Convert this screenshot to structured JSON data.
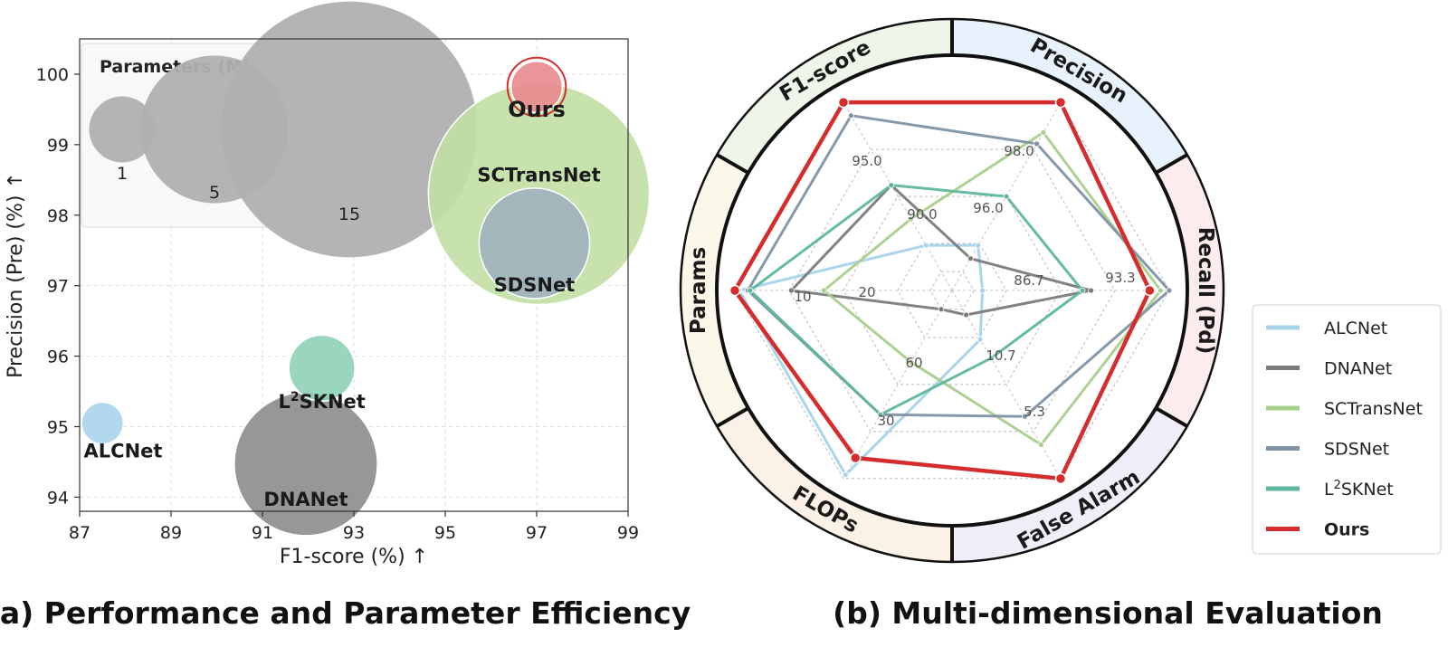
{
  "captions": {
    "a": "(a) Performance and Parameter Efficiency",
    "b": "(b) Multi-dimensional Evaluation"
  },
  "chart_data": [
    {
      "type": "scatter",
      "xlabel": "F1-score (%) ↑",
      "ylabel": "Precision (Pre) (%) ↑",
      "xlim": [
        87,
        99
      ],
      "ylim": [
        93.8,
        100.5
      ],
      "xticks": [
        "87",
        "89",
        "91",
        "93",
        "95",
        "97",
        "99"
      ],
      "yticks": [
        "94",
        "95",
        "96",
        "97",
        "98",
        "99",
        "100"
      ],
      "grid": true,
      "size_legend": {
        "title": "Parameters (M)",
        "values": [
          1,
          5,
          15
        ],
        "labels": [
          "1",
          "5",
          "15"
        ]
      },
      "points": [
        {
          "name": "ALCNet",
          "label": "ALCNet",
          "x": 87.5,
          "y": 95.05,
          "params": 0.4,
          "color": "#a8d4ea"
        },
        {
          "name": "DNANet",
          "label": "DNANet",
          "x": 91.95,
          "y": 94.47,
          "params": 4.7,
          "color": "#8c8c8c"
        },
        {
          "name": "L2SKNet",
          "label": "SKNet",
          "x": 92.3,
          "y": 95.83,
          "params": 1.0,
          "color": "#8fd1b7"
        },
        {
          "name": "SCTransNet",
          "label": "SCTransNet",
          "x": 97.05,
          "y": 98.3,
          "params": 11.2,
          "color": "#c2dfa4"
        },
        {
          "name": "SDSNet",
          "label": "SDSNet",
          "x": 96.95,
          "y": 97.6,
          "params": 2.8,
          "color": "#9fb1be"
        },
        {
          "name": "Ours",
          "label": "Ours",
          "x": 97.0,
          "y": 99.82,
          "params": 0.6,
          "color": "#e8898d"
        }
      ]
    },
    {
      "type": "radar",
      "axes": [
        "Precision",
        "Recall (Pd)",
        "False Alarm",
        "FLOPs",
        "Params",
        "F1-score"
      ],
      "ring_labels": [
        "90.0",
        "96.0",
        "86.7",
        "93.3",
        "10.7",
        "5.3",
        "60",
        "30",
        "10",
        "20",
        "95.0",
        "98.0"
      ],
      "series": [
        {
          "name": "ALCNet",
          "color": "#a6d3ea",
          "values": [
            0.24,
            0.14,
            0.26,
            0.98,
            0.98,
            0.24
          ]
        },
        {
          "name": "DNANet",
          "color": "#7b7b7b",
          "values": [
            0.17,
            0.64,
            0.13,
            0.1,
            0.74,
            0.56
          ]
        },
        {
          "name": "SCTransNet",
          "color": "#a9cf8c",
          "values": [
            0.84,
            0.96,
            0.82,
            0.38,
            0.59,
            0.38
          ]
        },
        {
          "name": "SDSNet",
          "color": "#7f93a5",
          "values": [
            0.78,
            1.0,
            0.67,
            0.66,
            0.94,
            0.93
          ]
        },
        {
          "name": "L2SKNet",
          "color": "#5eb79c",
          "values": [
            0.5,
            0.6,
            0.36,
            0.66,
            0.93,
            0.56
          ]
        },
        {
          "name": "Ours",
          "color": "#d52d2e",
          "values": [
            1.0,
            0.91,
            1.0,
            0.89,
            1.0,
            1.0
          ]
        }
      ],
      "legend": [
        {
          "name": "ALCNet",
          "label": "ALCNet",
          "color": "#a6d3ea"
        },
        {
          "name": "DNANet",
          "label": "DNANet",
          "color": "#7b7b7b"
        },
        {
          "name": "SCTransNet",
          "label": "SCTransNet",
          "color": "#a9cf8c"
        },
        {
          "name": "SDSNet",
          "label": "SDSNet",
          "color": "#7f93a5"
        },
        {
          "name": "L2SKNet",
          "label": "SKNet",
          "color": "#5eb79c"
        },
        {
          "name": "Ours",
          "label": "Ours",
          "color": "#d52d2e"
        }
      ],
      "legend_placement": "right",
      "segment_colors": [
        "#e8f2fc",
        "#fcecee",
        "#f2eef9",
        "#fcf1e6",
        "#fbf7e9",
        "#eef6ea"
      ]
    }
  ]
}
